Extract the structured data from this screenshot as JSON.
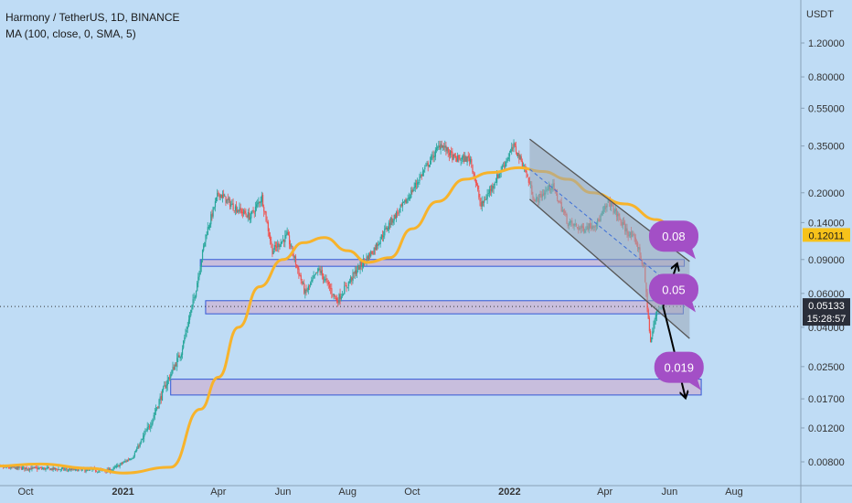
{
  "legend": {
    "title": "Harmony / TetherUS, 1D, BINANCE",
    "indicator": "MA (100, close, 0, SMA, 5)"
  },
  "colors": {
    "background": "#bfdcf5",
    "up": "#26a69a",
    "down": "#ef5350",
    "ma": "#f7b32b",
    "zone_fill": "#c9b8d8",
    "zone_stroke": "#3457d5",
    "channel_fill": "#9aa7b6",
    "bubble": "#a34fc6",
    "price_label": "#2a2e39",
    "ma_label": "#f7c21a"
  },
  "chart_data": {
    "type": "candlestick",
    "symbol": "Harmony / TetherUS",
    "interval": "1D",
    "exchange": "BINANCE",
    "y_axis": {
      "unit": "USDT",
      "scale": "log",
      "ticks": [
        "1.20000",
        "0.80000",
        "0.55000",
        "0.35000",
        "0.20000",
        "0.14000",
        "0.09000",
        "0.06000",
        "0.04000",
        "0.02500",
        "0.01700",
        "0.01200",
        "0.00800"
      ],
      "tick_values": [
        1.2,
        0.8,
        0.55,
        0.35,
        0.2,
        0.14,
        0.09,
        0.06,
        0.04,
        0.025,
        0.017,
        0.012,
        0.008
      ]
    },
    "x_axis": {
      "ticks": [
        "Oct",
        "2021",
        "Apr",
        "Jun",
        "Aug",
        "Oct",
        "2022",
        "Apr",
        "Jun",
        "Aug"
      ],
      "tick_dates": [
        "2020-10-01",
        "2021-01-01",
        "2021-04-01",
        "2021-06-01",
        "2021-08-01",
        "2021-10-01",
        "2022-01-01",
        "2022-04-01",
        "2022-06-01",
        "2022-08-01"
      ],
      "range": [
        "2020-09-01",
        "2022-09-10"
      ]
    },
    "price_path": [
      [
        "2020-09-01",
        0.0075
      ],
      [
        "2020-12-20",
        0.0072
      ],
      [
        "2021-01-10",
        0.0085
      ],
      [
        "2021-01-25",
        0.012
      ],
      [
        "2021-02-10",
        0.02
      ],
      [
        "2021-02-25",
        0.03
      ],
      [
        "2021-03-10",
        0.06
      ],
      [
        "2021-03-20",
        0.12
      ],
      [
        "2021-04-01",
        0.2
      ],
      [
        "2021-04-15",
        0.17
      ],
      [
        "2021-05-01",
        0.15
      ],
      [
        "2021-05-12",
        0.19
      ],
      [
        "2021-05-22",
        0.1
      ],
      [
        "2021-06-05",
        0.12
      ],
      [
        "2021-06-22",
        0.06
      ],
      [
        "2021-07-05",
        0.08
      ],
      [
        "2021-07-22",
        0.055
      ],
      [
        "2021-08-10",
        0.08
      ],
      [
        "2021-08-25",
        0.1
      ],
      [
        "2021-09-10",
        0.14
      ],
      [
        "2021-09-25",
        0.18
      ],
      [
        "2021-10-10",
        0.25
      ],
      [
        "2021-10-28",
        0.36
      ],
      [
        "2021-11-10",
        0.3
      ],
      [
        "2021-11-25",
        0.3
      ],
      [
        "2021-12-05",
        0.17
      ],
      [
        "2021-12-20",
        0.24
      ],
      [
        "2022-01-05",
        0.35
      ],
      [
        "2022-01-15",
        0.27
      ],
      [
        "2022-01-25",
        0.18
      ],
      [
        "2022-02-10",
        0.22
      ],
      [
        "2022-02-25",
        0.14
      ],
      [
        "2022-03-10",
        0.13
      ],
      [
        "2022-03-25",
        0.14
      ],
      [
        "2022-04-05",
        0.18
      ],
      [
        "2022-04-20",
        0.13
      ],
      [
        "2022-05-01",
        0.11
      ],
      [
        "2022-05-08",
        0.08
      ],
      [
        "2022-05-14",
        0.033
      ],
      [
        "2022-05-20",
        0.05
      ],
      [
        "2022-05-26",
        0.05133
      ]
    ],
    "series": [
      {
        "name": "MA (100, close, 0, SMA, 5)",
        "type": "line",
        "points": [
          [
            "2020-09-01",
            0.0076
          ],
          [
            "2020-10-15",
            0.0078
          ],
          [
            "2020-12-01",
            0.0074
          ],
          [
            "2021-01-01",
            0.007
          ],
          [
            "2021-02-15",
            0.0075
          ],
          [
            "2021-03-15",
            0.015
          ],
          [
            "2021-04-01",
            0.022
          ],
          [
            "2021-04-20",
            0.04
          ],
          [
            "2021-05-10",
            0.065
          ],
          [
            "2021-06-01",
            0.09
          ],
          [
            "2021-06-20",
            0.11
          ],
          [
            "2021-07-10",
            0.117
          ],
          [
            "2021-08-01",
            0.1
          ],
          [
            "2021-08-20",
            0.087
          ],
          [
            "2021-09-10",
            0.092
          ],
          [
            "2021-10-01",
            0.13
          ],
          [
            "2021-10-25",
            0.18
          ],
          [
            "2021-11-20",
            0.235
          ],
          [
            "2021-12-15",
            0.255
          ],
          [
            "2022-01-10",
            0.27
          ],
          [
            "2022-02-01",
            0.258
          ],
          [
            "2022-02-25",
            0.235
          ],
          [
            "2022-03-20",
            0.2
          ],
          [
            "2022-04-20",
            0.175
          ],
          [
            "2022-05-20",
            0.145
          ],
          [
            "2022-06-10",
            0.12
          ]
        ]
      }
    ],
    "zones": [
      {
        "from": "2021-03-15",
        "to": "2022-06-15",
        "high": 0.09,
        "low": 0.083
      },
      {
        "from": "2021-03-20",
        "to": "2022-06-14",
        "high": 0.055,
        "low": 0.047
      },
      {
        "from": "2021-02-15",
        "to": "2022-07-01",
        "high": 0.0215,
        "low": 0.0178
      }
    ],
    "channel": {
      "upper": [
        [
          "2022-01-20",
          0.38
        ],
        [
          "2022-06-20",
          0.088
        ]
      ],
      "lower": [
        [
          "2022-01-20",
          0.185
        ],
        [
          "2022-06-20",
          0.035
        ]
      ]
    },
    "annotations": [
      {
        "label": "0.08",
        "date": "2022-06-05",
        "value": 0.119
      },
      {
        "label": "0.05",
        "date": "2022-06-05",
        "value": 0.063
      },
      {
        "label": "0.019",
        "date": "2022-06-10",
        "value": 0.0248
      }
    ],
    "current_price": {
      "value": 0.05133,
      "label": "0.05133",
      "countdown": "15:28:57"
    },
    "ma_last": {
      "value": 0.12011,
      "label": "0.12011"
    }
  }
}
